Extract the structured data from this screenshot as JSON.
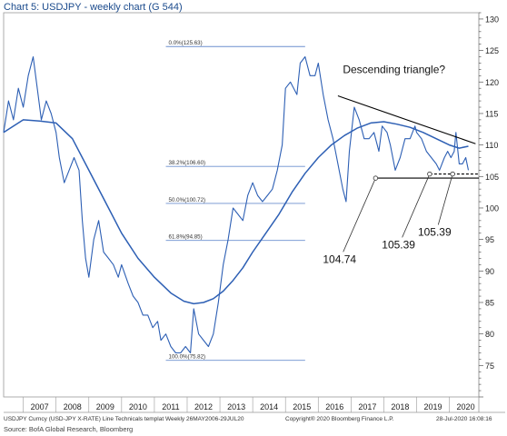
{
  "title": "Chart 5: USDJPY - weekly chart (G 544)",
  "footer": {
    "left": "USDJPY Curncy (USD-JPY X-RATE) Line Technicals templat  Weekly 26MAY2006-29JUL20",
    "center": "Copyright® 2020 Bloomberg Finance L.P.",
    "right": "28-Jul-2020 16:08:16"
  },
  "source": "Source: BofA Global Research, Bloomberg",
  "colors": {
    "price": "#2d5fb4",
    "ma": "#2d5fb4",
    "fib": "#6b8fcf",
    "trend": "#000000",
    "frame": "#999999"
  },
  "chart_data": {
    "type": "line",
    "title": "Chart 5: USDJPY - weekly chart (G 544)",
    "xlabel": "",
    "ylabel": "",
    "ylim": [
      70,
      131
    ],
    "xlim": [
      2006.4,
      2020.9
    ],
    "y_ticks": [
      75,
      80,
      85,
      90,
      95,
      100,
      105,
      110,
      115,
      120,
      125,
      130
    ],
    "x_tick_labels": [
      "2007",
      "2008",
      "2009",
      "2010",
      "2011",
      "2012",
      "2013",
      "2014",
      "2015",
      "2016",
      "2017",
      "2018",
      "2019",
      "2020"
    ],
    "y_axis_side": "right",
    "grid": false,
    "series": [
      {
        "name": "",
        "style": "price",
        "x": [
          2006.4,
          2006.55,
          2006.7,
          2006.85,
          2007.0,
          2007.15,
          2007.3,
          2007.45,
          2007.55,
          2007.7,
          2007.85,
          2008.0,
          2008.1,
          2008.25,
          2008.4,
          2008.55,
          2008.7,
          2008.8,
          2008.9,
          2009.0,
          2009.15,
          2009.3,
          2009.45,
          2009.6,
          2009.75,
          2009.9,
          2010.0,
          2010.2,
          2010.35,
          2010.5,
          2010.65,
          2010.8,
          2010.95,
          2011.1,
          2011.2,
          2011.35,
          2011.5,
          2011.65,
          2011.8,
          2011.95,
          2012.1,
          2012.2,
          2012.35,
          2012.5,
          2012.65,
          2012.8,
          2012.95,
          2013.1,
          2013.25,
          2013.4,
          2013.55,
          2013.7,
          2013.85,
          2014.0,
          2014.15,
          2014.3,
          2014.45,
          2014.6,
          2014.75,
          2014.9,
          2015.0,
          2015.15,
          2015.35,
          2015.45,
          2015.6,
          2015.75,
          2015.9,
          2016.0,
          2016.15,
          2016.3,
          2016.45,
          2016.6,
          2016.75,
          2016.85,
          2016.95,
          2017.1,
          2017.25,
          2017.4,
          2017.55,
          2017.7,
          2017.85,
          2017.95,
          2018.1,
          2018.2,
          2018.35,
          2018.5,
          2018.65,
          2018.8,
          2018.95,
          2019.0,
          2019.15,
          2019.3,
          2019.45,
          2019.6,
          2019.7,
          2019.85,
          2019.95,
          2020.05,
          2020.15,
          2020.2,
          2020.3,
          2020.4,
          2020.5,
          2020.58
        ],
        "y": [
          112,
          117,
          114,
          119,
          116,
          121,
          124,
          118,
          114,
          117,
          115,
          112,
          108,
          104,
          106,
          108,
          106,
          98,
          92,
          89,
          95,
          98,
          93,
          92,
          91,
          89,
          91,
          88,
          86,
          85,
          83,
          83,
          81,
          82,
          79,
          80,
          78,
          77,
          77,
          78,
          77,
          84,
          80,
          79,
          78,
          80,
          85,
          91,
          95,
          100,
          99,
          98,
          102,
          104,
          102,
          101,
          102,
          103,
          106,
          110,
          119,
          120,
          118,
          123,
          124,
          121,
          121,
          123,
          118,
          114,
          111,
          107,
          103,
          101,
          109,
          116,
          114,
          111,
          111,
          112,
          109,
          113,
          112,
          110,
          106,
          108,
          111,
          111,
          113,
          112,
          111,
          109,
          108,
          107,
          106,
          108,
          109,
          108,
          109,
          112,
          107,
          107,
          108,
          106
        ]
      },
      {
        "name": "",
        "style": "moving-average",
        "x": [
          2006.4,
          2007.0,
          2007.5,
          2008.0,
          2008.5,
          2009.0,
          2009.5,
          2010.0,
          2010.5,
          2011.0,
          2011.5,
          2011.9,
          2012.2,
          2012.5,
          2012.8,
          2013.1,
          2013.4,
          2013.7,
          2014.0,
          2014.4,
          2014.8,
          2015.2,
          2015.6,
          2016.0,
          2016.4,
          2016.8,
          2017.2,
          2017.6,
          2018.0,
          2018.4,
          2018.8,
          2019.2,
          2019.6,
          2020.0,
          2020.3,
          2020.58
        ],
        "y": [
          112,
          114,
          113.8,
          113.5,
          111,
          106,
          101,
          96,
          92,
          89,
          86.5,
          85.2,
          84.8,
          85,
          85.6,
          86.8,
          88.5,
          90.5,
          93,
          96,
          99,
          102.5,
          105.5,
          108,
          110,
          111.5,
          112.7,
          113.5,
          113.7,
          113.3,
          112.8,
          112,
          111,
          110,
          109.5,
          109.8
        ]
      }
    ],
    "fibonacci_levels": [
      {
        "label": "0.0%(125.63)",
        "value": 125.63
      },
      {
        "label": "38.2%(106.60)",
        "value": 106.6
      },
      {
        "label": "50.0%(100.72)",
        "value": 100.72
      },
      {
        "label": "61.8%(94.85)",
        "value": 94.85
      },
      {
        "label": "100.0%(75.82)",
        "value": 75.82
      }
    ],
    "fib_x_range": [
      2011.35,
      2015.6
    ],
    "trendlines": [
      {
        "kind": "resistance",
        "x": [
          2016.6,
          2020.8
        ],
        "y": [
          117.8,
          110.2
        ]
      },
      {
        "kind": "support",
        "x": [
          2017.75,
          2020.9
        ],
        "y": [
          104.74,
          104.74
        ]
      },
      {
        "kind": "support-dashed",
        "x": [
          2019.4,
          2020.9
        ],
        "y": [
          105.39,
          105.39
        ]
      }
    ],
    "annotations": [
      {
        "id": "pattern",
        "text": "Descending triangle?"
      },
      {
        "id": "low1",
        "text": "104.74",
        "point": [
          2017.75,
          104.74
        ]
      },
      {
        "id": "low2",
        "text": "105.39",
        "point": [
          2019.4,
          105.39
        ]
      },
      {
        "id": "low3",
        "text": "105.39",
        "point": [
          2020.1,
          105.39
        ]
      }
    ]
  }
}
